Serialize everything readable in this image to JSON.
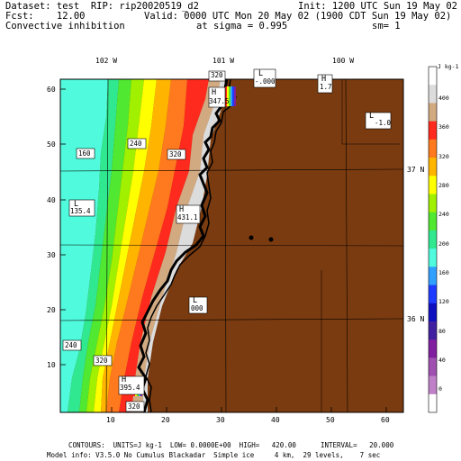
{
  "header": {
    "line1_left": "Dataset: test  RIP: rip20020519_d2",
    "line1_right": "Init: 1200 UTC Sun 19 May 02",
    "line2_left": "Fcst:    12.00",
    "line2_right": "Valid: 0000 UTC Mon 20 May 02 (1900 CDT Sun 19 May 02)",
    "line3_left": "Convective inhibition",
    "line3_mid": "at sigma = 0.995",
    "line3_right": "sm= 1"
  },
  "longitudes": [
    "102 W",
    "101 W",
    "100 W"
  ],
  "latitudes": [
    "37 N",
    "36 N"
  ],
  "y_ticks": [
    "60",
    "50",
    "40",
    "30",
    "20",
    "10"
  ],
  "x_ticks": [
    "10",
    "20",
    "30",
    "40",
    "50",
    "60"
  ],
  "map_labels": {
    "h_top": "H",
    "h_top_val": "347.5",
    "l_top": "L",
    "l_top_val": "-.000",
    "h_right": "H",
    "h_right_val": "1.7",
    "l_right": "L",
    "l_right_val": "-1.0",
    "l_left": "L",
    "l_left_val": "135.4",
    "h_mid": "H",
    "h_mid_val": "431.1",
    "l_bottom": "L",
    "l_bottom_val": "000",
    "h_bottom": "H",
    "h_bottom_val": "395.4",
    "c240a": "240",
    "c160": "160",
    "c320a": "320",
    "c320b": "320",
    "c240b": "240",
    "c320c": "320",
    "c320d": "320"
  },
  "colorbar": {
    "unit": "J kg-1",
    "labels": [
      "400",
      "360",
      "320",
      "280",
      "240",
      "200",
      "160",
      "120",
      "80",
      "40",
      "0"
    ],
    "colors": [
      "#ffffff",
      "#dcdcdc",
      "#d2aa82",
      "#ff2a1e",
      "#ff7a1e",
      "#ffb400",
      "#ffff00",
      "#a0f000",
      "#50e830",
      "#30e890",
      "#50fadc",
      "#30a0ff",
      "#1e3cff",
      "#1010c0",
      "#4020a0",
      "#8020a0",
      "#a050b0",
      "#c080c8",
      "#ffffff"
    ]
  },
  "footer": {
    "line1": "CONTOURS:  UNITS=J kg-1  LOW= 0.0000E+00  HIGH=   420.00      INTERVAL=   20.000",
    "line2": "Model info: V3.5.0 No Cumulus Blackadar  Simple ice     4 km,  29 levels,    7 sec"
  }
}
